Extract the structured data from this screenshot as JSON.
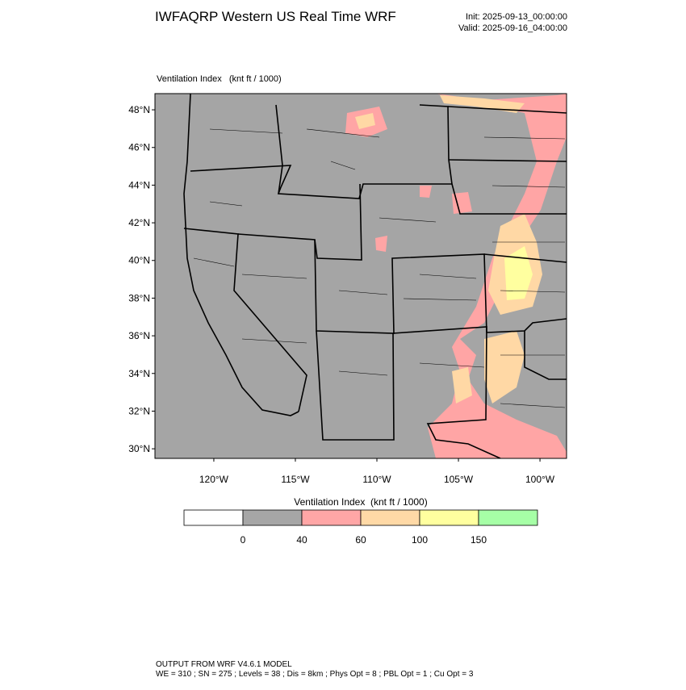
{
  "chart_data": {
    "type": "map",
    "title": "IWFAQRP Western US Real Time WRF",
    "init": "Init: 2025-09-13_00:00:00",
    "valid": "Valid: 2025-09-16_04:00:00",
    "plot_label": "Ventilation Index   (knt ft / 1000)",
    "xlim": [
      -123.61,
      -98.37
    ],
    "ylim": [
      29.49,
      48.86
    ],
    "xticks": [
      {
        "value": -120,
        "label": "120°W"
      },
      {
        "value": -115,
        "label": "115°W"
      },
      {
        "value": -110,
        "label": "110°W"
      },
      {
        "value": -105,
        "label": "105°W"
      },
      {
        "value": -100,
        "label": "100°W"
      }
    ],
    "yticks": [
      {
        "value": 30,
        "label": "30°N"
      },
      {
        "value": 32,
        "label": "32°N"
      },
      {
        "value": 34,
        "label": "34°N"
      },
      {
        "value": 36,
        "label": "36°N"
      },
      {
        "value": 38,
        "label": "38°N"
      },
      {
        "value": 40,
        "label": "40°N"
      },
      {
        "value": 42,
        "label": "42°N"
      },
      {
        "value": 44,
        "label": "44°N"
      },
      {
        "value": 46,
        "label": "46°N"
      },
      {
        "value": 48,
        "label": "48°N"
      }
    ],
    "colorbar": {
      "title": "Ventilation Index  (knt ft / 1000)",
      "levels": [
        0,
        40,
        60,
        100,
        150
      ],
      "colors": [
        "#ffffff",
        "#a6a6a6",
        "#ffa6a6",
        "#ffd9a6",
        "#ffff9f",
        "#a6ffa6"
      ]
    },
    "footer": [
      "OUTPUT FROM WRF V4.6.1 MODEL",
      "WE = 310 ; SN = 275 ; Levels = 38 ; Dis = 8km ; Phys Opt = 8 ; PBL Opt = 1 ; Cu Opt = 3"
    ]
  }
}
